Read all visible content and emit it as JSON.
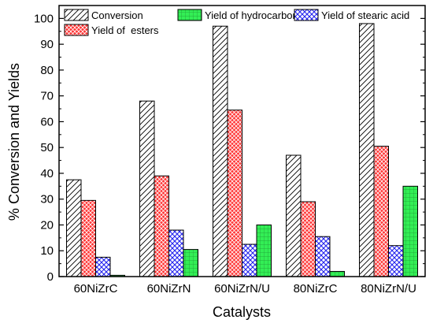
{
  "chart_data": {
    "type": "bar",
    "xlabel": "Catalysts",
    "ylabel": "% Conversion and Yields",
    "ylim": [
      0,
      105
    ],
    "yticks": [
      0,
      10,
      20,
      30,
      40,
      50,
      60,
      70,
      80,
      90,
      100
    ],
    "categories": [
      "60NiZrC",
      "60NiZrN",
      "60NiZrN/U",
      "80NiZrC",
      "80NiZrN/U"
    ],
    "series": [
      {
        "name": "Conversion",
        "values": [
          37.5,
          68,
          97,
          47,
          98
        ],
        "fill": "#ffffff",
        "pattern": "diagonal-hatch"
      },
      {
        "name": "Yield of  esters",
        "values": [
          29.5,
          39,
          64.5,
          29,
          50.5
        ],
        "fill": "#ff3333",
        "pattern": "crosshatch"
      },
      {
        "name": "Yield of stearic acid",
        "values": [
          7.5,
          18,
          12.5,
          15.5,
          12
        ],
        "fill": "#3333ff",
        "pattern": "diamond-crosshatch"
      },
      {
        "name": "Yield of hydrocarbons",
        "values": [
          0.5,
          10.5,
          20,
          2,
          35
        ],
        "fill": "#33ee55",
        "pattern": "grid"
      }
    ],
    "grid": false,
    "legend": "top-inside"
  }
}
